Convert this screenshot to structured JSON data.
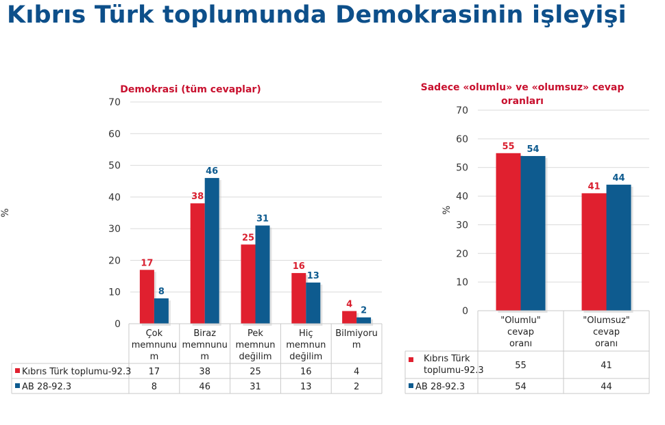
{
  "page": {
    "title": "Kıbrıs Türk toplumunda Demokrasinin işleyişi",
    "colors": {
      "title": "#0d4f8a",
      "chart_title": "#c8102e",
      "series1": "#e0202f",
      "series2": "#0e5b8f",
      "label1": "#d91f2f",
      "label2": "#0e5b8f"
    }
  },
  "chart_data": [
    {
      "type": "bar",
      "title": "Demokrasi (tüm cevaplar)",
      "ylabel": "%",
      "ylim": [
        0,
        70
      ],
      "yticks": [
        0,
        10,
        20,
        30,
        40,
        50,
        60,
        70
      ],
      "grid": true,
      "categories": [
        [
          "Çok",
          "memnunu",
          "m"
        ],
        [
          "Biraz",
          "memnunu",
          "m"
        ],
        [
          "Pek",
          "memnun",
          "değilim"
        ],
        [
          "Hiç",
          "memnun",
          "değilim"
        ],
        [
          "Bilmiyoru",
          "m"
        ]
      ],
      "series": [
        {
          "name": "Kıbrıs Türk toplumu-92.3",
          "values": [
            17,
            38,
            25,
            16,
            4
          ]
        },
        {
          "name": "AB 28-92.3",
          "values": [
            8,
            46,
            31,
            13,
            2
          ]
        }
      ],
      "legend": "data-table-below"
    },
    {
      "type": "bar",
      "title": [
        "Sadece «olumlu» ve «olumsuz» cevap",
        "oranları"
      ],
      "ylabel": "%",
      "ylim": [
        0,
        70
      ],
      "yticks": [
        0,
        10,
        20,
        30,
        40,
        50,
        60,
        70
      ],
      "grid": true,
      "categories": [
        [
          "\"Olumlu\"",
          "cevap",
          "oranı"
        ],
        [
          "\"Olumsuz\"",
          "cevap",
          "oranı"
        ]
      ],
      "series": [
        {
          "name": [
            "Kıbrıs Türk",
            "toplumu-92.3"
          ],
          "values": [
            55,
            41
          ]
        },
        {
          "name": "AB 28-92.3",
          "values": [
            54,
            44
          ]
        }
      ],
      "legend": "data-table-below"
    }
  ]
}
